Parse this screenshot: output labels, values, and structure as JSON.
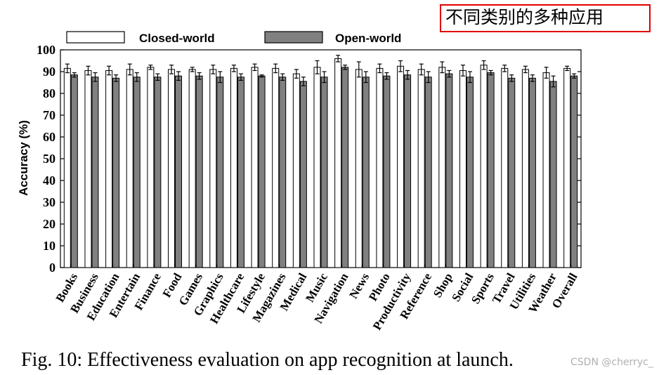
{
  "annotation": "不同类别的多种应用",
  "caption": "Fig. 10: Effectiveness evaluation on app recognition at launch.",
  "watermark": "CSDN @cherryc_",
  "chart_data": {
    "type": "bar",
    "title": "",
    "xlabel": "",
    "ylabel": "Accuracy (%)",
    "ylim": [
      0,
      100
    ],
    "yticks": [
      0,
      10,
      20,
      30,
      40,
      50,
      60,
      70,
      80,
      90,
      100
    ],
    "legend_position": "top",
    "grid": false,
    "error_bars": true,
    "categories": [
      "Books",
      "Business",
      "Education",
      "Entertain",
      "Finance",
      "Food",
      "Games",
      "Graphics",
      "Healthcare",
      "Lifestyle",
      "Magazines",
      "Medical",
      "Music",
      "Navigation",
      "News",
      "Photo",
      "Productivity",
      "Reference",
      "Shop",
      "Social",
      "Sports",
      "Travel",
      "Utilities",
      "Weather",
      "Overall"
    ],
    "series": [
      {
        "name": "Closed-world",
        "color": "#ffffff",
        "values": [
          91.5,
          90.5,
          90.5,
          91,
          92,
          91,
          91,
          91,
          91.5,
          92,
          91.5,
          89,
          92,
          96,
          91,
          91.5,
          92.5,
          91,
          92,
          90.5,
          93,
          91.5,
          91,
          89.5,
          91.5
        ],
        "errors": [
          2,
          2,
          2,
          2.5,
          1,
          2,
          1,
          2,
          1.5,
          1.5,
          2,
          2,
          3,
          1.5,
          3.5,
          2,
          2.5,
          2.5,
          2.5,
          2.5,
          2,
          1.5,
          1.5,
          2.5,
          1
        ]
      },
      {
        "name": "Open-world",
        "color": "#808080",
        "values": [
          88.5,
          87.5,
          87,
          87.5,
          87.5,
          88,
          88,
          87.5,
          87.5,
          88,
          87.5,
          85.5,
          87.5,
          92,
          87.5,
          88,
          88.5,
          87.5,
          89,
          87.5,
          89.5,
          87,
          87,
          85.5,
          88
        ],
        "errors": [
          1,
          2,
          1.5,
          2,
          1.5,
          2,
          1.5,
          2.5,
          1.5,
          0.5,
          1.5,
          2,
          2.5,
          1,
          2.5,
          1.5,
          2,
          2.5,
          1.5,
          2.5,
          1,
          1.5,
          1.5,
          2.5,
          1
        ]
      }
    ]
  }
}
